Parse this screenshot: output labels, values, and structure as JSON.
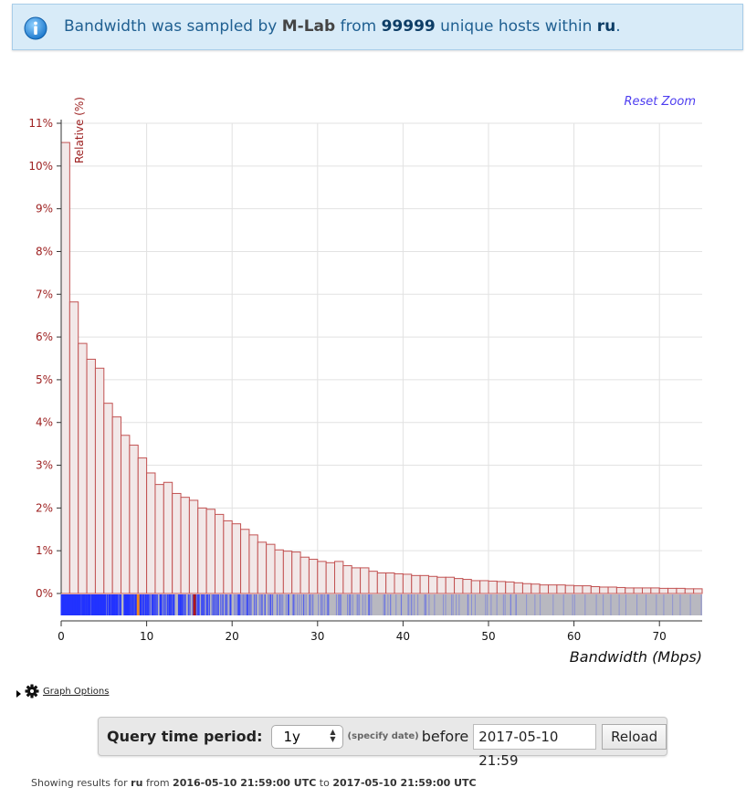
{
  "banner": {
    "prefix": "Bandwidth was sampled by",
    "source": "M-Lab",
    "mid": "from",
    "count": "99999",
    "mid2": "unique hosts within",
    "country": "ru",
    "suffix": "."
  },
  "reset_zoom": "Reset Zoom",
  "graph_options": "Graph Options",
  "query": {
    "label": "Query time period:",
    "period": "1y",
    "specify": "(specify date)",
    "before": "before",
    "date": "2017-05-10 21:59",
    "reload": "Reload"
  },
  "footer": {
    "prefix": "Showing results for",
    "country": "ru",
    "from_word": "from",
    "from": "2016-05-10 21:59:00 UTC",
    "to_word": "to",
    "to": "2017-05-10 21:59:00 UTC"
  },
  "colors": {
    "bar_fill": "#f2e8e8",
    "bar_stroke": "#c25252",
    "axis_red": "#9c1e1e",
    "rug_blue": "#2233ff",
    "rug_gray": "#b8b8c0",
    "marker_orange": "#f08a20",
    "marker_red": "#b01818"
  },
  "chart_data": {
    "type": "bar",
    "xlabel": "Bandwidth (Mbps)",
    "ylabel": "Relative (%)",
    "xlim": [
      0,
      75
    ],
    "ylim": [
      0,
      11
    ],
    "x_ticks": [
      0,
      10,
      20,
      30,
      40,
      50,
      60,
      70
    ],
    "y_ticks": [
      "0%",
      "1%",
      "2%",
      "3%",
      "4%",
      "5%",
      "6%",
      "7%",
      "8%",
      "9%",
      "10%",
      "11%"
    ],
    "bin_width": 1,
    "values": [
      10.55,
      6.82,
      5.85,
      5.48,
      5.27,
      4.45,
      4.13,
      3.7,
      3.47,
      3.17,
      2.82,
      2.55,
      2.6,
      2.34,
      2.25,
      2.18,
      2.0,
      1.97,
      1.85,
      1.7,
      1.63,
      1.5,
      1.37,
      1.2,
      1.15,
      1.02,
      0.99,
      0.97,
      0.85,
      0.8,
      0.75,
      0.72,
      0.75,
      0.65,
      0.6,
      0.6,
      0.52,
      0.48,
      0.48,
      0.46,
      0.45,
      0.42,
      0.42,
      0.4,
      0.38,
      0.38,
      0.35,
      0.33,
      0.3,
      0.3,
      0.29,
      0.28,
      0.27,
      0.25,
      0.23,
      0.22,
      0.2,
      0.2,
      0.2,
      0.19,
      0.18,
      0.18,
      0.16,
      0.15,
      0.15,
      0.14,
      0.13,
      0.13,
      0.13,
      0.13,
      0.12,
      0.12,
      0.12,
      0.11,
      0.11
    ],
    "markers": [
      {
        "x": 9.0,
        "color": "orange"
      },
      {
        "x": 15.6,
        "color": "red"
      }
    ],
    "grid": true
  }
}
